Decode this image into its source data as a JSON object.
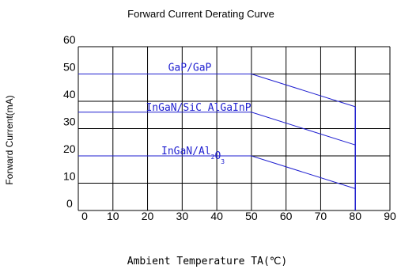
{
  "chart_data": {
    "type": "line",
    "title": "Forward Current Derating Curve",
    "xlabel": "Ambient Temperature TA(℃)",
    "ylabel": "Forward Current(mA)",
    "x_ticks": [
      "0",
      "10",
      "20",
      "30",
      "40",
      "50",
      "60",
      "70",
      "80",
      "90"
    ],
    "y_ticks": [
      "0",
      "10",
      "20",
      "30",
      "40",
      "50",
      "60"
    ],
    "xlim": [
      0,
      90
    ],
    "ylim": [
      0,
      60
    ],
    "grid": true,
    "colors": {
      "series": "#1f1fd0",
      "grid": "#000000",
      "text": "#000000"
    },
    "series": [
      {
        "name": "GaP/GaP",
        "x": [
          0,
          50,
          80
        ],
        "y": [
          50,
          50,
          38
        ]
      },
      {
        "name": "InGaN/SiC AlGaInP",
        "x": [
          0,
          50,
          80
        ],
        "y": [
          36,
          36,
          24
        ]
      },
      {
        "name": "InGaN/Al2O3",
        "x": [
          0,
          50,
          80
        ],
        "y": [
          20,
          20,
          8
        ]
      }
    ],
    "cutoff": {
      "x": 80
    }
  }
}
